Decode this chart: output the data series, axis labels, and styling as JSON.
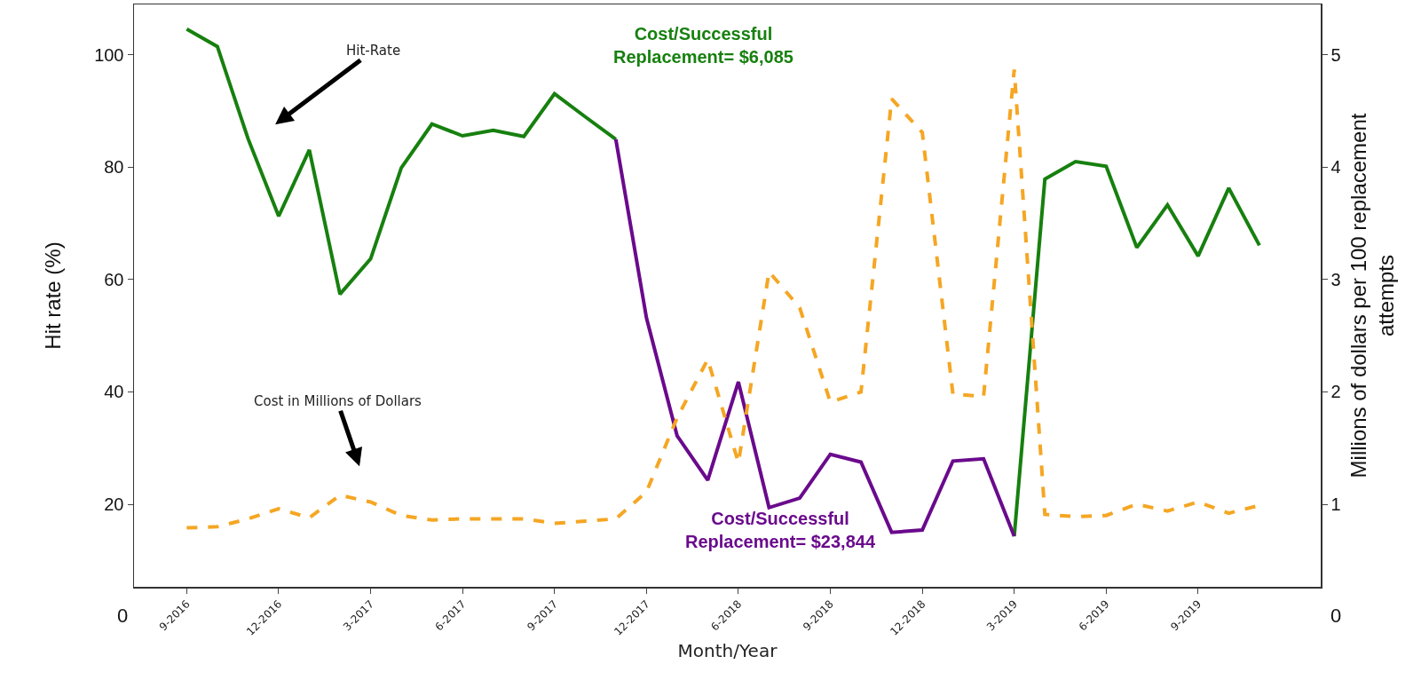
{
  "chart_data": {
    "type": "line",
    "categories": [
      "9-2016",
      null,
      null,
      "12-2016",
      null,
      null,
      "3-2017",
      null,
      null,
      "6-2017",
      null,
      null,
      "9-2017",
      null,
      null,
      "12-2017",
      null,
      null,
      "6-2018",
      null,
      null,
      "9-2018",
      null,
      null,
      "12-2018",
      null,
      null,
      "3-2019",
      null,
      null,
      "6-2019",
      null,
      null,
      "9-2019",
      null,
      null
    ],
    "series": [
      {
        "color": "#17800f",
        "line_style": "solid",
        "values": [
          104.6,
          101.5,
          85.1,
          71.3,
          83.1,
          57.4,
          63.7,
          79.9,
          87.7,
          85.6,
          86.6,
          85.5,
          93.1,
          89.0,
          85.0,
          null,
          null,
          null,
          null,
          null,
          null,
          null,
          null,
          null,
          null,
          null,
          null,
          14.3,
          77.9,
          81.0,
          80.2,
          65.7,
          73.3,
          64.2,
          76.3,
          66.1
        ]
      },
      {
        "color": "#6a0a8c",
        "line_style": "solid",
        "values": [
          null,
          null,
          null,
          null,
          null,
          null,
          null,
          null,
          null,
          null,
          null,
          null,
          null,
          null,
          85.0,
          53.2,
          32.2,
          24.3,
          41.8,
          19.4,
          21.1,
          28.9,
          27.5,
          15.0,
          15.4,
          27.7,
          28.1,
          14.3,
          null,
          null,
          null,
          null,
          null,
          null,
          null,
          null
        ]
      },
      {
        "color": "#f5a623",
        "line_style": "dashed",
        "axis": "y2",
        "values": [
          0.79,
          0.8,
          0.87,
          0.96,
          0.88,
          1.08,
          1.02,
          0.9,
          0.86,
          0.87,
          0.87,
          0.87,
          0.83,
          0.85,
          0.87,
          1.11,
          1.77,
          2.29,
          1.37,
          3.07,
          2.75,
          1.91,
          2.0,
          4.61,
          4.31,
          1.98,
          1.96,
          4.87,
          0.91,
          0.89,
          0.9,
          1.0,
          0.94,
          1.02,
          0.92,
          0.99
        ]
      }
    ],
    "xlabel": "Month/Year",
    "ylabel": "Hit rate (%)",
    "y2label": "Millions of dollars per 100 replacement attempts",
    "ylim": [
      5.3,
      109
    ],
    "yticks": [
      20,
      40,
      60,
      80,
      100
    ],
    "y2lim": [
      0.265,
      5.45
    ],
    "y2ticks": [
      1,
      2,
      3,
      4,
      5
    ],
    "annotations": [
      "Hit-Rate",
      "Cost in Millions of Dollars",
      "Cost/Successful\nReplacement= $6,085",
      "Cost/Successful\nReplacement= $23,844",
      "0",
      "0"
    ]
  }
}
